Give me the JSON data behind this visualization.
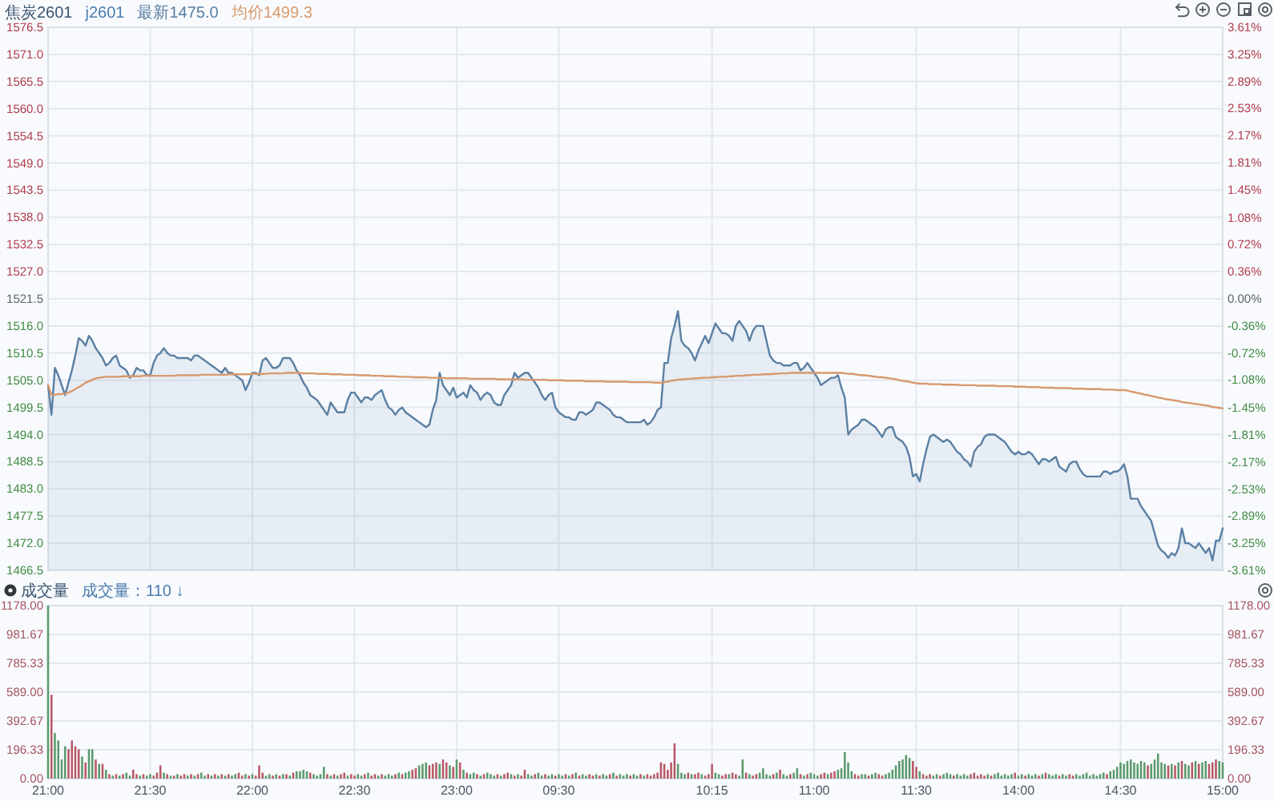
{
  "chart_data": [
    {
      "type": "area",
      "title": "焦炭2601",
      "subtitle": "j2601",
      "legend": "top left",
      "grid": true,
      "tick_labels": "y",
      "categories": [
        null,
        null,
        null,
        null,
        null,
        null,
        null,
        null,
        null,
        null,
        null,
        null,
        null,
        null,
        null,
        null,
        null,
        null,
        null,
        null,
        null,
        null,
        null,
        null,
        null,
        null,
        null,
        null,
        null,
        null,
        null,
        null,
        null,
        null,
        null,
        null,
        null,
        null,
        null,
        null,
        null,
        null,
        null,
        null,
        null,
        null,
        null,
        null,
        null,
        null,
        null,
        null,
        null,
        null,
        null,
        null,
        null,
        null,
        null,
        null,
        null,
        null,
        null,
        null,
        null,
        null,
        null,
        null,
        null,
        null,
        null,
        null,
        null,
        null,
        null,
        null,
        null,
        null,
        null,
        null,
        null,
        null,
        null,
        null,
        null,
        null,
        null,
        null,
        null,
        null,
        null,
        null,
        null,
        null,
        null,
        null,
        null,
        null,
        null,
        null,
        null,
        null,
        null,
        null,
        null,
        null,
        null,
        null,
        null,
        null,
        null,
        null,
        null,
        null,
        null,
        null,
        null,
        null,
        null,
        null,
        null,
        null,
        null,
        null,
        null,
        null,
        null,
        null,
        null,
        null,
        null,
        null,
        null,
        null,
        null,
        null,
        null,
        null,
        null,
        null,
        null,
        null,
        null,
        null,
        null,
        null,
        null,
        null,
        null,
        null,
        null,
        null,
        null,
        null,
        null,
        null,
        null,
        null,
        null,
        null,
        null,
        null,
        null,
        null,
        null,
        null,
        null,
        null,
        null,
        null,
        null,
        null,
        null,
        null,
        null,
        null,
        null,
        null,
        null,
        null,
        null,
        null,
        null,
        null,
        null,
        null,
        null,
        null,
        null,
        null,
        null,
        null,
        null,
        null,
        null,
        null,
        null,
        null,
        null,
        null,
        null,
        null,
        null,
        null,
        null,
        null,
        null,
        null,
        null,
        null,
        null,
        null,
        null,
        null,
        null,
        null,
        null,
        null,
        null,
        null,
        null,
        null,
        null,
        null,
        null,
        null,
        null,
        null,
        null,
        null,
        null,
        null,
        null,
        null,
        null,
        null,
        null,
        null,
        null,
        null,
        null,
        null,
        null,
        null,
        null,
        null,
        null,
        null,
        null,
        null,
        null,
        null,
        null,
        null,
        null,
        null,
        null,
        null,
        null,
        null,
        null,
        null,
        null,
        null,
        null,
        null,
        null,
        null,
        null,
        null,
        null,
        null,
        null,
        null,
        null,
        null,
        null,
        null,
        null,
        null,
        null,
        null,
        null,
        null,
        null,
        null,
        null,
        null,
        null,
        null,
        null,
        null,
        null,
        null,
        null,
        null,
        null,
        null,
        null,
        null,
        null,
        null,
        null,
        null,
        null,
        null,
        null,
        null,
        null,
        null,
        null,
        null,
        null,
        null,
        null,
        null,
        null,
        null,
        null,
        null,
        null,
        null,
        null,
        null,
        null,
        null,
        null,
        null,
        null,
        null,
        null,
        null,
        null,
        null,
        null,
        null,
        null,
        null,
        null,
        null,
        null,
        null,
        null,
        null,
        null,
        null
      ],
      "ylim": [
        1466.5,
        1576.5
      ],
      "yticks": [
        1466.5,
        {
          "value": 1472,
          "label": "1472.0"
        },
        1477.5,
        {
          "value": 1483,
          "label": "1483.0"
        },
        1488.5,
        {
          "value": 1494,
          "label": "1494.0"
        },
        1499.5,
        {
          "value": 1505,
          "label": "1505.0"
        },
        1510.5,
        {
          "value": 1516,
          "label": "1516.0"
        },
        1521.5,
        {
          "value": 1527,
          "label": "1527.0"
        },
        1532.5,
        {
          "value": 1538,
          "label": "1538.0"
        },
        1543.5,
        {
          "value": 1549,
          "label": "1549.0"
        },
        1554.5,
        {
          "value": 1560,
          "label": "1560.0"
        },
        1565.5,
        {
          "value": 1571,
          "label": "1571.0"
        },
        1576.5
      ],
      "y2lim": [
        -3.61,
        3.61
      ],
      "y2ticks": [
        {
          "value": -3.61,
          "label": "-3.61%"
        },
        {
          "value": -3.25,
          "label": "-3.25%"
        },
        {
          "value": -2.89,
          "label": "-2.89%"
        },
        {
          "value": -2.53,
          "label": "-2.53%"
        },
        {
          "value": -2.17,
          "label": "-2.17%"
        },
        {
          "value": -1.81,
          "label": "-1.81%"
        },
        {
          "value": -1.45,
          "label": "-1.45%"
        },
        {
          "value": -1.08,
          "label": "-1.08%"
        },
        {
          "value": -0.72,
          "label": "-0.72%"
        },
        {
          "value": -0.36,
          "label": "-0.36%"
        },
        {
          "value": 0,
          "label": "0.00%"
        },
        {
          "value": 0.36,
          "label": "0.36%"
        },
        {
          "value": 0.72,
          "label": "0.72%"
        },
        {
          "value": 1.08,
          "label": "1.08%"
        },
        {
          "value": 1.45,
          "label": "1.45%"
        },
        {
          "value": 1.81,
          "label": "1.81%"
        },
        {
          "value": 2.17,
          "label": "2.17%"
        },
        {
          "value": 2.53,
          "label": "2.53%"
        },
        {
          "value": 2.89,
          "label": "2.89%"
        },
        {
          "value": 3.25,
          "label": "3.25%"
        },
        {
          "value": 3.61,
          "label": "3.61%"
        }
      ],
      "series": [
        {
          "name": "最新1475.0",
          "color": "#5a7fa3",
          "values": [
            1504,
            1498,
            1507.5,
            1506,
            1504,
            1502,
            1504.5,
            1507,
            1510,
            1513.5,
            1513,
            1512,
            1514,
            1513,
            1511.5,
            1510.5,
            1509.5,
            1508,
            1508.5,
            1509.5,
            1510,
            1508,
            1507.5,
            1507,
            1505.5,
            1506,
            1507.5,
            1507,
            1507,
            1506,
            1506,
            1508.5,
            1510,
            1510.5,
            1511.5,
            1510.5,
            1510,
            1510,
            1509.5,
            1509.5,
            1509.5,
            1509.5,
            1509,
            1510,
            1510,
            1509.5,
            1509,
            1508.5,
            1508,
            1507.5,
            1507,
            1506.5,
            1507.5,
            1506.5,
            1506.5,
            1506,
            1505.5,
            1505,
            1503,
            1504.5,
            1506.5,
            1506.5,
            1506,
            1509,
            1509.5,
            1508.5,
            1507.5,
            1507.5,
            1508,
            1509.5,
            1509.5,
            1509.5,
            1508.5,
            1507,
            1506,
            1504.5,
            1503.5,
            1502,
            1501.5,
            1501,
            1500,
            1499,
            1498,
            1500.5,
            1499.5,
            1498.5,
            1498.5,
            1498.5,
            1501,
            1502.5,
            1502.5,
            1501.5,
            1500.5,
            1501.5,
            1501.5,
            1501,
            1502,
            1502.5,
            1503,
            1501,
            1499.5,
            1499,
            1498,
            1499,
            1499.5,
            1498.5,
            1498,
            1497.5,
            1497,
            1496.5,
            1496,
            1495.5,
            1496,
            1499,
            1501,
            1506.5,
            1504,
            1503,
            1502,
            1503.5,
            1501.5,
            1502,
            1502.5,
            1501.5,
            1504,
            1503,
            1502.5,
            1501,
            1502,
            1502.5,
            1502,
            1500.5,
            1500,
            1500,
            1502,
            1503,
            1504,
            1506.5,
            1505.5,
            1506,
            1506.5,
            1506.5,
            1505.5,
            1504.5,
            1503.5,
            1502,
            1501,
            1502,
            1502.5,
            1499.5,
            1498.5,
            1498,
            1497.5,
            1497.5,
            1497,
            1497,
            1498.5,
            1498.5,
            1498,
            1498.5,
            1499,
            1500.5,
            1500.5,
            1500,
            1499.5,
            1499,
            1498,
            1497.5,
            1497.5,
            1497,
            1496.5,
            1496.5,
            1496.5,
            1496.5,
            1496.5,
            1497,
            1496,
            1496.5,
            1497.5,
            1499,
            1499.5,
            1508.5,
            1508.5,
            1513.5,
            1516,
            1519,
            1513,
            1512,
            1511.5,
            1510.5,
            1509,
            1511,
            1512.5,
            1514,
            1512.5,
            1514.5,
            1516.5,
            1515.5,
            1514.5,
            1514.5,
            1514,
            1513,
            1516,
            1517,
            1516,
            1515,
            1513,
            1515,
            1516,
            1516,
            1516,
            1513,
            1510,
            1509,
            1508.5,
            1508.5,
            1508,
            1508,
            1508,
            1508.5,
            1508.5,
            1507,
            1507.5,
            1508.5,
            1507.5,
            1506.5,
            1505.5,
            1504,
            1504.5,
            1505,
            1505.5,
            1505.5,
            1506,
            1503.5,
            1501.5,
            1494,
            1495,
            1495.5,
            1496,
            1497,
            1497,
            1496.5,
            1496,
            1495.5,
            1494.5,
            1493.5,
            1495,
            1495.5,
            1495.5,
            1493.5,
            1493,
            1492.5,
            1491.5,
            1489.5,
            1485.5,
            1486,
            1484.5,
            1488,
            1491,
            1493.5,
            1494,
            1493.5,
            1493,
            1492.5,
            1493,
            1492.5,
            1491.5,
            1490.5,
            1490,
            1489,
            1488.5,
            1487.5,
            1490.5,
            1491.5,
            1492,
            1493.5,
            1494,
            1494,
            1494,
            1493.5,
            1493,
            1492.5,
            1491.5,
            1490.5,
            1490,
            1490.5,
            1490,
            1490,
            1490.5,
            1490,
            1489,
            1488,
            1489,
            1489,
            1488.5,
            1489,
            1489.5,
            1487.5,
            1487,
            1486.5,
            1488,
            1488.5,
            1488.5,
            1487,
            1486,
            1485.5,
            1485.5,
            1485.5,
            1485.5,
            1485.5,
            1486.5,
            1486.5,
            1486,
            1486.5,
            1486.5,
            1487,
            1488,
            1485.5,
            1481,
            1481,
            1481,
            1479.5,
            1478.5,
            1477.5,
            1476.5,
            1474,
            1471.5,
            1470.5,
            1470,
            1469,
            1470,
            1469.5,
            1471,
            1475,
            1472,
            1472,
            1471.5,
            1471,
            1472,
            1471,
            1470,
            1471,
            1468.5,
            1472.5,
            1472.5,
            1475
          ]
        },
        {
          "name": "均价1499.3",
          "type": "line",
          "color": "#d8996c",
          "values": [
            1504,
            1502,
            1502,
            1502.2,
            1502.2,
            1502.3,
            1502.5,
            1502.8,
            1503.2,
            1503.6,
            1504,
            1504.5,
            1504.8,
            1505.1,
            1505.4,
            1505.5,
            1505.6,
            1505.7,
            1505.7,
            1505.7,
            1505.7,
            1505.7,
            1505.8,
            1505.8,
            1505.8,
            1505.8,
            1505.8,
            1505.8,
            1505.9,
            1505.9,
            1505.9,
            1505.9,
            1505.9,
            1505.9,
            1505.9,
            1505.9,
            1505.9,
            1505.9,
            1506,
            1506,
            1506,
            1506,
            1506,
            1506,
            1506,
            1506.1,
            1506.1,
            1506.1,
            1506.1,
            1506.1,
            1506.1,
            1506.1,
            1506.1,
            1506.2,
            1506.2,
            1506.2,
            1506.2,
            1506.2,
            1506.2,
            1506.2,
            1506.3,
            1506.3,
            1506.3,
            1506.3,
            1506.3,
            1506.4,
            1506.4,
            1506.4,
            1506.4,
            1506.4,
            1506.5,
            1506.5,
            1506.5,
            1506.5,
            1506.5,
            1506.4,
            1506.4,
            1506.4,
            1506.4,
            1506.3,
            1506.3,
            1506.3,
            1506.3,
            1506.2,
            1506.2,
            1506.2,
            1506.2,
            1506.1,
            1506.1,
            1506.1,
            1506.1,
            1506,
            1506,
            1506,
            1506,
            1505.9,
            1505.9,
            1505.9,
            1505.9,
            1505.8,
            1505.8,
            1505.8,
            1505.8,
            1505.7,
            1505.7,
            1505.7,
            1505.7,
            1505.6,
            1505.6,
            1505.6,
            1505.6,
            1505.6,
            1505.5,
            1505.5,
            1505.5,
            1505.5,
            1505.5,
            1505.4,
            1505.4,
            1505.4,
            1505.4,
            1505.4,
            1505.4,
            1505.4,
            1505.3,
            1505.3,
            1505.3,
            1505.3,
            1505.3,
            1505.3,
            1505.3,
            1505.3,
            1505.2,
            1505.2,
            1505.2,
            1505.2,
            1505.2,
            1505.2,
            1505.2,
            1505.2,
            1505.1,
            1505.1,
            1505.1,
            1505.1,
            1505.1,
            1505.1,
            1505.1,
            1505,
            1505,
            1505,
            1505,
            1505,
            1504.9,
            1504.9,
            1504.9,
            1504.9,
            1504.9,
            1504.9,
            1504.8,
            1504.8,
            1504.8,
            1504.8,
            1504.8,
            1504.8,
            1504.7,
            1504.7,
            1504.7,
            1504.7,
            1504.7,
            1504.7,
            1504.7,
            1504.6,
            1504.6,
            1504.6,
            1504.6,
            1504.6,
            1504.6,
            1504.6,
            1504.5,
            1504.5,
            1504.5,
            1504.6,
            1504.7,
            1504.9,
            1505,
            1505.1,
            1505.2,
            1505.2,
            1505.3,
            1505.3,
            1505.4,
            1505.4,
            1505.5,
            1505.5,
            1505.5,
            1505.6,
            1505.6,
            1505.7,
            1505.7,
            1505.7,
            1505.8,
            1505.8,
            1505.9,
            1505.9,
            1505.9,
            1506,
            1506,
            1506.1,
            1506.1,
            1506.1,
            1506.2,
            1506.2,
            1506.2,
            1506.3,
            1506.3,
            1506.4,
            1506.4,
            1506.4,
            1506.5,
            1506.5,
            1506.5,
            1506.5,
            1506.5,
            1506.5,
            1506.5,
            1506.5,
            1506.5,
            1506.5,
            1506.5,
            1506.5,
            1506.5,
            1506.5,
            1506.5,
            1506.5,
            1506.4,
            1506.3,
            1506.3,
            1506.2,
            1506.1,
            1506,
            1506,
            1505.9,
            1505.8,
            1505.7,
            1505.6,
            1505.6,
            1505.5,
            1505.4,
            1505.3,
            1505.2,
            1505,
            1504.9,
            1504.8,
            1504.7,
            1504.5,
            1504.4,
            1504.3,
            1504.3,
            1504.3,
            1504.2,
            1504.2,
            1504.2,
            1504.2,
            1504.1,
            1504.1,
            1504.1,
            1504.1,
            1504.1,
            1504,
            1504,
            1504,
            1504,
            1504,
            1503.9,
            1503.9,
            1503.9,
            1503.9,
            1503.9,
            1503.9,
            1503.8,
            1503.8,
            1503.8,
            1503.8,
            1503.8,
            1503.7,
            1503.7,
            1503.7,
            1503.7,
            1503.6,
            1503.6,
            1503.6,
            1503.6,
            1503.5,
            1503.5,
            1503.5,
            1503.5,
            1503.4,
            1503.4,
            1503.4,
            1503.4,
            1503.4,
            1503.3,
            1503.3,
            1503.3,
            1503.3,
            1503.2,
            1503.2,
            1503.2,
            1503.2,
            1503.2,
            1503.1,
            1503.1,
            1503.1,
            1503.1,
            1503,
            1503,
            1503,
            1502.9,
            1502.7,
            1502.6,
            1502.4,
            1502.3,
            1502.1,
            1502,
            1501.8,
            1501.7,
            1501.5,
            1501.4,
            1501.2,
            1501.1,
            1501,
            1500.9,
            1500.8,
            1500.6,
            1500.5,
            1500.4,
            1500.3,
            1500.2,
            1500.1,
            1500,
            1499.9,
            1499.8,
            1499.6,
            1499.5,
            1499.4,
            1499.3
          ]
        }
      ]
    },
    {
      "type": "bar",
      "title": "成交量",
      "annotations": [
        "成交量：110 ↓"
      ],
      "grid": true,
      "categories": [
        "21:00",
        null,
        null,
        null,
        null,
        null,
        null,
        null,
        null,
        null,
        null,
        null,
        null,
        null,
        null,
        null,
        null,
        null,
        null,
        null,
        null,
        null,
        null,
        null,
        null,
        null,
        null,
        null,
        null,
        null,
        "21:30",
        null,
        null,
        null,
        null,
        null,
        null,
        null,
        null,
        null,
        null,
        null,
        null,
        null,
        null,
        null,
        null,
        null,
        null,
        null,
        null,
        null,
        null,
        null,
        null,
        null,
        null,
        null,
        null,
        null,
        "22:00",
        null,
        null,
        null,
        null,
        null,
        null,
        null,
        null,
        null,
        null,
        null,
        null,
        null,
        null,
        null,
        null,
        null,
        null,
        null,
        null,
        null,
        null,
        null,
        null,
        null,
        null,
        null,
        null,
        null,
        "22:30",
        null,
        null,
        null,
        null,
        null,
        null,
        null,
        null,
        null,
        null,
        null,
        null,
        null,
        null,
        null,
        null,
        null,
        null,
        null,
        null,
        null,
        null,
        null,
        null,
        null,
        null,
        null,
        null,
        null,
        "23:00",
        null,
        null,
        null,
        null,
        null,
        null,
        null,
        null,
        null,
        null,
        null,
        null,
        null,
        null,
        null,
        null,
        null,
        null,
        null,
        null,
        null,
        null,
        null,
        null,
        null,
        null,
        null,
        null,
        null,
        "09:30",
        null,
        null,
        null,
        null,
        null,
        null,
        null,
        null,
        null,
        null,
        null,
        null,
        null,
        null,
        null,
        null,
        null,
        null,
        null,
        null,
        null,
        null,
        null,
        null,
        null,
        null,
        null,
        null,
        null,
        null,
        null,
        null,
        null,
        null,
        null,
        null,
        null,
        null,
        null,
        null,
        null,
        null,
        null,
        null,
        "10:15",
        null,
        null,
        null,
        null,
        null,
        null,
        null,
        null,
        null,
        null,
        null,
        null,
        null,
        null,
        null,
        null,
        null,
        null,
        null,
        null,
        null,
        null,
        null,
        null,
        null,
        null,
        null,
        null,
        null,
        "11:00",
        null,
        null,
        null,
        null,
        null,
        null,
        null,
        null,
        null,
        null,
        null,
        null,
        null,
        null,
        null,
        null,
        null,
        null,
        null,
        null,
        null,
        null,
        null,
        null,
        null,
        null,
        null,
        null,
        null,
        "11:30",
        null,
        null,
        null,
        null,
        null,
        null,
        null,
        null,
        null,
        null,
        null,
        null,
        null,
        null,
        null,
        null,
        null,
        null,
        null,
        null,
        null,
        null,
        null,
        null,
        null,
        null,
        null,
        null,
        null,
        "14:00",
        null,
        null,
        null,
        null,
        null,
        null,
        null,
        null,
        null,
        null,
        null,
        null,
        null,
        null,
        null,
        null,
        null,
        null,
        null,
        null,
        null,
        null,
        null,
        null,
        null,
        null,
        null,
        null,
        null,
        "14:30",
        null,
        null,
        null,
        null,
        null,
        null,
        null,
        null,
        null,
        null,
        null,
        null,
        null,
        null,
        null,
        null,
        null,
        null,
        null,
        null,
        null,
        null,
        null,
        null,
        null,
        null,
        null,
        null,
        null,
        "15:00"
      ],
      "ylim": [
        0,
        1178
      ],
      "yticks": [
        {
          "value": 0,
          "label": "0.00"
        },
        {
          "value": 196.33,
          "label": "196.33"
        },
        {
          "value": 392.67,
          "label": "392.67"
        },
        {
          "value": 589,
          "label": "589.00"
        },
        {
          "value": 785.33,
          "label": "785.33"
        },
        {
          "value": 981.67,
          "label": "981.67"
        },
        {
          "value": 1178,
          "label": "1178.00"
        }
      ],
      "y2lim": [
        0,
        1178
      ],
      "y2ticks": [
        {
          "value": 0,
          "label": "0.00"
        },
        {
          "value": 196.33,
          "label": "196.33"
        },
        {
          "value": 392.67,
          "label": "392.67"
        },
        {
          "value": 589,
          "label": "589.00"
        },
        {
          "value": 785.33,
          "label": "785.33"
        },
        {
          "value": 981.67,
          "label": "981.67"
        },
        {
          "value": 1178,
          "label": "1178.00"
        }
      ],
      "values": [
        1178,
        570,
        310,
        260,
        130,
        220,
        200,
        260,
        220,
        200,
        150,
        110,
        200,
        200,
        130,
        100,
        100,
        60,
        30,
        20,
        30,
        20,
        30,
        40,
        20,
        60,
        30,
        20,
        30,
        20,
        30,
        20,
        40,
        90,
        40,
        30,
        20,
        20,
        30,
        20,
        30,
        20,
        30,
        20,
        30,
        40,
        20,
        30,
        20,
        30,
        20,
        30,
        20,
        30,
        20,
        30,
        40,
        20,
        30,
        20,
        30,
        20,
        90,
        40,
        20,
        30,
        20,
        30,
        20,
        30,
        30,
        20,
        40,
        50,
        50,
        60,
        50,
        40,
        30,
        20,
        30,
        80,
        30,
        20,
        30,
        20,
        30,
        40,
        20,
        30,
        20,
        30,
        20,
        30,
        40,
        20,
        30,
        20,
        30,
        20,
        30,
        20,
        30,
        40,
        30,
        40,
        50,
        60,
        70,
        90,
        100,
        110,
        90,
        100,
        110,
        100,
        130,
        110,
        90,
        80,
        130,
        110,
        60,
        40,
        30,
        40,
        30,
        20,
        30,
        40,
        30,
        20,
        30,
        20,
        30,
        40,
        30,
        20,
        30,
        20,
        60,
        30,
        20,
        30,
        40,
        20,
        30,
        20,
        30,
        20,
        30,
        20,
        30,
        20,
        30,
        40,
        20,
        30,
        20,
        30,
        20,
        30,
        20,
        30,
        20,
        30,
        40,
        20,
        30,
        20,
        30,
        20,
        30,
        20,
        30,
        20,
        30,
        20,
        30,
        40,
        110,
        100,
        60,
        110,
        240,
        100,
        40,
        30,
        40,
        30,
        30,
        40,
        30,
        20,
        30,
        100,
        40,
        30,
        20,
        30,
        30,
        40,
        30,
        20,
        130,
        40,
        30,
        20,
        30,
        40,
        70,
        30,
        20,
        30,
        40,
        60,
        30,
        20,
        30,
        40,
        70,
        30,
        20,
        30,
        40,
        30,
        20,
        30,
        40,
        30,
        40,
        50,
        60,
        70,
        180,
        110,
        50,
        30,
        20,
        30,
        30,
        20,
        30,
        40,
        30,
        20,
        30,
        40,
        60,
        90,
        120,
        130,
        160,
        140,
        120,
        80,
        50,
        30,
        20,
        30,
        20,
        30,
        20,
        30,
        40,
        30,
        20,
        30,
        20,
        30,
        20,
        30,
        40,
        20,
        30,
        20,
        30,
        20,
        30,
        40,
        20,
        30,
        20,
        30,
        40,
        20,
        30,
        20,
        30,
        20,
        30,
        20,
        30,
        40,
        30,
        20,
        30,
        20,
        30,
        20,
        30,
        20,
        30,
        20,
        30,
        40,
        20,
        30,
        20,
        30,
        40,
        30,
        50,
        60,
        80,
        110,
        100,
        120,
        130,
        110,
        100,
        120,
        110,
        90,
        100,
        130,
        170,
        110,
        100,
        90,
        100,
        90,
        110,
        120,
        100,
        90,
        110,
        120,
        100,
        110,
        120,
        100,
        110,
        130,
        120,
        110
      ],
      "colors": [
        "#5b9a6c",
        "#b85866",
        "#5b9a6c",
        "#5b9a6c",
        "#5b9a6c",
        "#5b9a6c",
        "#b85866",
        "#b85866",
        "#b85866",
        "#b85866",
        "#5b9a6c",
        "#b85866",
        "#5b9a6c",
        "#5b9a6c",
        "#b85866",
        "#5b9a6c",
        "#b85866",
        "#5b9a6c",
        "#b85866",
        "#5b9a6c",
        "#b85866",
        "#5b9a6c",
        "#b85866",
        "#5b9a6c",
        "#5b9a6c",
        "#b85866",
        "#b85866",
        "#5b9a6c",
        "#b85866",
        "#5b9a6c",
        "#5b9a6c",
        "#b85866",
        "#b85866",
        "#b85866",
        "#5b9a6c",
        "#b85866",
        "#5b9a6c",
        "#b85866",
        "#5b9a6c",
        "#b85866",
        "#b85866",
        "#5b9a6c",
        "#b85866",
        "#5b9a6c",
        "#b85866",
        "#5b9a6c",
        "#5b9a6c",
        "#b85866",
        "#5b9a6c",
        "#b85866",
        "#5b9a6c",
        "#b85866",
        "#5b9a6c",
        "#b85866",
        "#5b9a6c",
        "#5b9a6c",
        "#b85866",
        "#b85866",
        "#5b9a6c",
        "#b85866",
        "#5b9a6c",
        "#b85866",
        "#b85866",
        "#b85866",
        "#5b9a6c",
        "#5b9a6c",
        "#b85866",
        "#5b9a6c",
        "#b85866",
        "#5b9a6c",
        "#b85866",
        "#5b9a6c",
        "#b85866",
        "#5b9a6c",
        "#5b9a6c",
        "#5b9a6c",
        "#5b9a6c",
        "#b85866",
        "#5b9a6c",
        "#5b9a6c",
        "#5b9a6c",
        "#5b9a6c",
        "#b85866",
        "#5b9a6c",
        "#b85866",
        "#5b9a6c",
        "#b85866",
        "#b85866",
        "#5b9a6c",
        "#b85866",
        "#b85866",
        "#5b9a6c",
        "#5b9a6c",
        "#b85866",
        "#5b9a6c",
        "#b85866",
        "#b85866",
        "#5b9a6c",
        "#b85866",
        "#5b9a6c",
        "#5b9a6c",
        "#5b9a6c",
        "#b85866",
        "#5b9a6c",
        "#b85866",
        "#5b9a6c",
        "#5b9a6c",
        "#b85866",
        "#b85866",
        "#5b9a6c",
        "#5b9a6c",
        "#5b9a6c",
        "#b85866",
        "#b85866",
        "#b85866",
        "#5b9a6c",
        "#b85866",
        "#b85866",
        "#5b9a6c",
        "#b85866",
        "#5b9a6c",
        "#b85866",
        "#5b9a6c",
        "#b85866",
        "#5b9a6c",
        "#5b9a6c",
        "#b85866",
        "#5b9a6c",
        "#b85866",
        "#5b9a6c",
        "#5b9a6c",
        "#5b9a6c",
        "#b85866",
        "#5b9a6c",
        "#b85866",
        "#b85866",
        "#5b9a6c",
        "#b85866",
        "#5b9a6c",
        "#b85866",
        "#b85866",
        "#5b9a6c",
        "#5b9a6c",
        "#b85866",
        "#5b9a6c",
        "#5b9a6c",
        "#b85866",
        "#5b9a6c",
        "#5b9a6c",
        "#b85866",
        "#5b9a6c",
        "#5b9a6c",
        "#b85866",
        "#5b9a6c",
        "#b85866",
        "#5b9a6c",
        "#b85866",
        "#5b9a6c",
        "#5b9a6c",
        "#b85866",
        "#b85866",
        "#5b9a6c",
        "#b85866",
        "#5b9a6c",
        "#5b9a6c",
        "#b85866",
        "#5b9a6c",
        "#b85866",
        "#5b9a6c",
        "#5b9a6c",
        "#5b9a6c",
        "#b85866",
        "#5b9a6c",
        "#5b9a6c",
        "#b85866",
        "#5b9a6c",
        "#b85866",
        "#b85866",
        "#b85866",
        "#b85866",
        "#b85866",
        "#b85866",
        "#b85866",
        "#b85866",
        "#b85866",
        "#5b9a6c",
        "#5b9a6c",
        "#5b9a6c",
        "#b85866",
        "#5b9a6c",
        "#b85866",
        "#b85866",
        "#5b9a6c",
        "#b85866",
        "#b85866",
        "#b85866",
        "#5b9a6c",
        "#5b9a6c",
        "#b85866",
        "#b85866",
        "#5b9a6c",
        "#b85866",
        "#b85866",
        "#5b9a6c",
        "#5b9a6c",
        "#b85866",
        "#5b9a6c",
        "#b85866",
        "#b85866",
        "#5b9a6c",
        "#5b9a6c",
        "#5b9a6c",
        "#5b9a6c",
        "#b85866",
        "#5b9a6c",
        "#b85866",
        "#5b9a6c",
        "#5b9a6c",
        "#b85866",
        "#5b9a6c",
        "#5b9a6c",
        "#b85866",
        "#5b9a6c",
        "#b85866",
        "#5b9a6c",
        "#5b9a6c",
        "#5b9a6c",
        "#b85866",
        "#b85866",
        "#5b9a6c",
        "#b85866",
        "#b85866",
        "#5b9a6c",
        "#5b9a6c",
        "#5b9a6c",
        "#5b9a6c",
        "#5b9a6c",
        "#b85866",
        "#b85866",
        "#5b9a6c",
        "#5b9a6c",
        "#b85866",
        "#5b9a6c",
        "#5b9a6c",
        "#b85866",
        "#b85866",
        "#5b9a6c",
        "#5b9a6c",
        "#5b9a6c",
        "#5b9a6c",
        "#5b9a6c",
        "#5b9a6c",
        "#5b9a6c",
        "#5b9a6c",
        "#b85866",
        "#b85866",
        "#5b9a6c",
        "#b85866",
        "#b85866",
        "#b85866",
        "#5b9a6c",
        "#5b9a6c",
        "#b85866",
        "#5b9a6c",
        "#5b9a6c",
        "#5b9a6c",
        "#b85866",
        "#5b9a6c",
        "#5b9a6c",
        "#5b9a6c",
        "#5b9a6c",
        "#b85866",
        "#b85866",
        "#b85866",
        "#b85866",
        "#b85866",
        "#5b9a6c",
        "#b85866",
        "#5b9a6c",
        "#5b9a6c",
        "#5b9a6c",
        "#5b9a6c",
        "#5b9a6c",
        "#5b9a6c",
        "#b85866",
        "#5b9a6c",
        "#5b9a6c",
        "#b85866",
        "#5b9a6c",
        "#5b9a6c",
        "#5b9a6c",
        "#b85866",
        "#5b9a6c",
        "#b85866",
        "#5b9a6c",
        "#5b9a6c",
        "#5b9a6c",
        "#b85866",
        "#5b9a6c",
        "#5b9a6c",
        "#b85866",
        "#b85866",
        "#5b9a6c",
        "#5b9a6c",
        "#5b9a6c",
        "#5b9a6c",
        "#5b9a6c",
        "#5b9a6c",
        "#5b9a6c",
        "#5b9a6c",
        "#5b9a6c",
        "#b85866",
        "#5b9a6c",
        "#5b9a6c",
        "#5b9a6c",
        "#5b9a6c",
        "#5b9a6c",
        "#5b9a6c",
        "#5b9a6c",
        "#5b9a6c",
        "#5b9a6c",
        "#5b9a6c",
        "#5b9a6c",
        "#b85866",
        "#5b9a6c",
        "#5b9a6c",
        "#5b9a6c",
        "#5b9a6c",
        "#5b9a6c",
        "#b85866",
        "#5b9a6c",
        "#b85866",
        "#5b9a6c",
        "#b85866",
        "#5b9a6c",
        "#5b9a6c",
        "#b85866",
        "#5b9a6c",
        "#b85866",
        "#5b9a6c",
        "#5b9a6c",
        "#b85866",
        "#b85866",
        "#b85866",
        "#5b9a6c",
        "#5b9a6c"
      ]
    }
  ]
}
